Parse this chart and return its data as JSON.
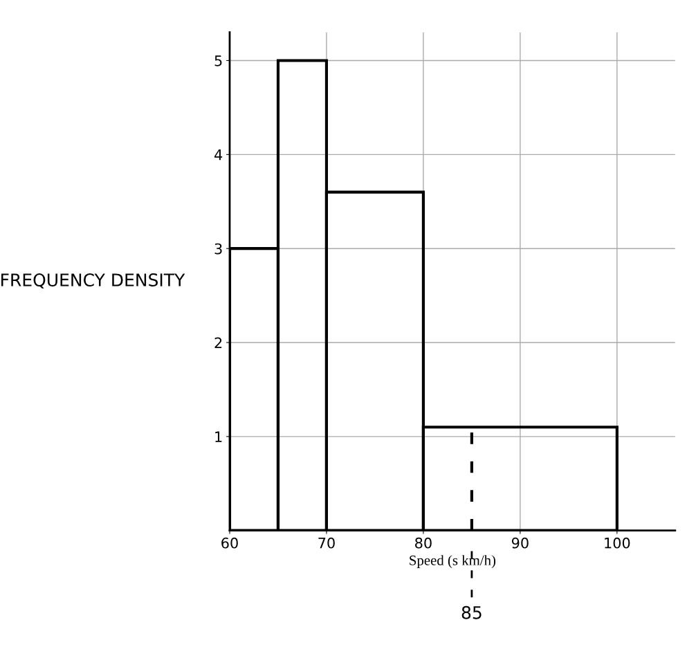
{
  "chart_data": {
    "type": "histogram",
    "xlabel": "Speed (s km/h)",
    "ylabel": "FREQUENCY DENSITY",
    "bins": [
      60,
      65,
      70,
      80,
      100
    ],
    "values": [
      3,
      5,
      3.6,
      1.1
    ],
    "color": "#000000",
    "xlim": [
      60,
      106
    ],
    "ylim": [
      0,
      5.3
    ],
    "xticks": [
      60,
      70,
      80,
      90,
      100
    ],
    "yticks": [
      1,
      2,
      3,
      4,
      5
    ],
    "grid": true,
    "ref_lines": [
      {
        "axis": "x",
        "value": 85,
        "label": "85",
        "color": "#000000",
        "line_style": "dashed"
      }
    ]
  }
}
